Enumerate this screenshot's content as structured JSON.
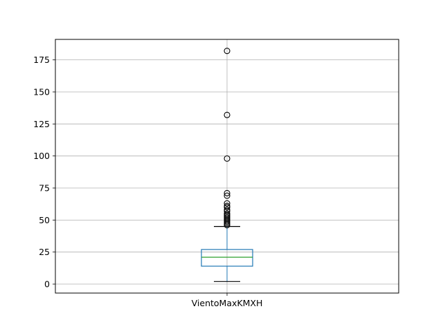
{
  "chart_data": {
    "type": "box",
    "title": "",
    "xlabel": "",
    "ylabel": "",
    "categories": [
      "VientoMaxKMXH"
    ],
    "ylim": [
      -7,
      191
    ],
    "yticks": [
      0,
      25,
      50,
      75,
      100,
      125,
      150,
      175
    ],
    "grid": true,
    "box": {
      "whisker_low": 2,
      "q1": 14,
      "median": 21,
      "q3": 27,
      "whisker_high": 45
    },
    "outliers": [
      46,
      47,
      48,
      49,
      50,
      51,
      52,
      53,
      54,
      55,
      57,
      58,
      60,
      61,
      63,
      69,
      71,
      98,
      132,
      182
    ],
    "colors": {
      "box": "#1f77b4",
      "median": "#2ca02c",
      "whisker": "#1f77b4",
      "cap": "#000000",
      "outlier": "#000000",
      "grid": "#b0b0b0"
    }
  }
}
